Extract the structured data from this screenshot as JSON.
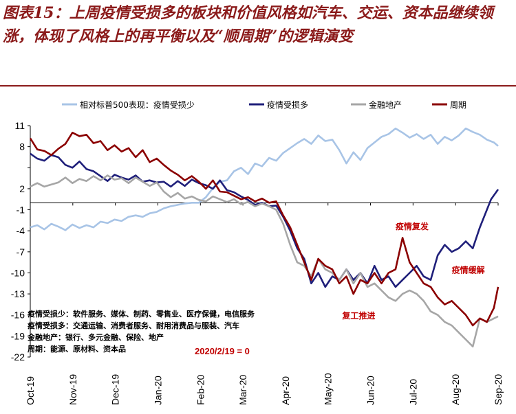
{
  "figure": {
    "title": "图表15：上周疫情受损多的板块和价值风格如汽车、交运、资本品继续领涨，体现了风格上的再平衡以及“顺周期”的逻辑演变"
  },
  "chart_data": {
    "type": "line",
    "ylim": [
      -22,
      11
    ],
    "yticks": [
      11,
      8,
      5,
      2,
      -1,
      -4,
      -7,
      -10,
      -13,
      -16,
      -19,
      -22
    ],
    "ytick_labels": [
      "11",
      "8",
      "",
      "2",
      "-1",
      "-4",
      "-7",
      "-10",
      "-13",
      "-16",
      "-19",
      "-22"
    ],
    "xticks": [
      "Oct-19",
      "Nov-19",
      "Dec-19",
      "Jan-20",
      "Feb-20",
      "Mar-20",
      "Apr-20",
      "May-20",
      "Jun-20",
      "Jul-20",
      "Aug-20",
      "Sep-20"
    ],
    "x_start": "2019-10-08",
    "x_end": "2020-09-25",
    "legend_position": "top",
    "grid": false,
    "series": [
      {
        "name": "相对标普500表现：疫情受损少",
        "color": "#A8C4E6",
        "values": [
          [
            0,
            -3.5
          ],
          [
            5,
            -3.2
          ],
          [
            10,
            -3.8
          ],
          [
            15,
            -3.0
          ],
          [
            20,
            -3.4
          ],
          [
            25,
            -3.9
          ],
          [
            30,
            -3.1
          ],
          [
            35,
            -3.6
          ],
          [
            40,
            -3.2
          ],
          [
            45,
            -3.5
          ],
          [
            50,
            -2.7
          ],
          [
            55,
            -2.9
          ],
          [
            60,
            -2.4
          ],
          [
            65,
            -2.6
          ],
          [
            70,
            -2.0
          ],
          [
            75,
            -1.8
          ],
          [
            80,
            -2.0
          ],
          [
            85,
            -1.5
          ],
          [
            90,
            -1.3
          ],
          [
            95,
            -0.8
          ],
          [
            100,
            -0.5
          ],
          [
            105,
            -0.3
          ],
          [
            110,
            -0.1
          ],
          [
            115,
            0.0
          ],
          [
            120,
            0.0
          ],
          [
            125,
            0.8
          ],
          [
            130,
            2.1
          ],
          [
            135,
            3.0
          ],
          [
            140,
            3.2
          ],
          [
            145,
            4.5
          ],
          [
            150,
            5.0
          ],
          [
            155,
            4.1
          ],
          [
            160,
            5.6
          ],
          [
            165,
            5.2
          ],
          [
            170,
            6.4
          ],
          [
            175,
            6.0
          ],
          [
            180,
            7.1
          ],
          [
            185,
            7.8
          ],
          [
            190,
            8.5
          ],
          [
            195,
            9.1
          ],
          [
            200,
            8.4
          ],
          [
            205,
            9.6
          ],
          [
            210,
            8.8
          ],
          [
            215,
            9.0
          ],
          [
            220,
            7.5
          ],
          [
            225,
            5.6
          ],
          [
            230,
            7.2
          ],
          [
            235,
            6.1
          ],
          [
            240,
            7.8
          ],
          [
            245,
            8.6
          ],
          [
            250,
            9.4
          ],
          [
            255,
            9.8
          ],
          [
            260,
            10.6
          ],
          [
            265,
            10.0
          ],
          [
            270,
            9.3
          ],
          [
            275,
            9.8
          ],
          [
            280,
            9.1
          ],
          [
            285,
            9.7
          ],
          [
            290,
            8.4
          ],
          [
            295,
            9.4
          ],
          [
            300,
            8.9
          ],
          [
            305,
            9.6
          ],
          [
            310,
            10.6
          ],
          [
            315,
            10.1
          ],
          [
            320,
            9.7
          ],
          [
            325,
            9.0
          ],
          [
            330,
            8.6
          ],
          [
            333,
            8.1
          ]
        ]
      },
      {
        "name": "疫情受损多",
        "color": "#1F1F7A",
        "values": [
          [
            0,
            7.0
          ],
          [
            5,
            6.3
          ],
          [
            10,
            6.0
          ],
          [
            15,
            6.8
          ],
          [
            20,
            6.5
          ],
          [
            25,
            5.4
          ],
          [
            30,
            5.0
          ],
          [
            35,
            5.9
          ],
          [
            40,
            4.8
          ],
          [
            45,
            4.5
          ],
          [
            50,
            3.8
          ],
          [
            55,
            3.1
          ],
          [
            60,
            4.0
          ],
          [
            65,
            3.6
          ],
          [
            70,
            3.3
          ],
          [
            75,
            3.9
          ],
          [
            80,
            3.0
          ],
          [
            85,
            3.2
          ],
          [
            90,
            2.9
          ],
          [
            95,
            3.0
          ],
          [
            100,
            2.3
          ],
          [
            105,
            3.1
          ],
          [
            110,
            2.4
          ],
          [
            115,
            3.3
          ],
          [
            120,
            2.8
          ],
          [
            125,
            2.5
          ],
          [
            130,
            2.0
          ],
          [
            135,
            3.2
          ],
          [
            140,
            1.8
          ],
          [
            145,
            1.5
          ],
          [
            150,
            0.9
          ],
          [
            155,
            0.4
          ],
          [
            160,
            -0.3
          ],
          [
            165,
            0.0
          ],
          [
            170,
            -0.5
          ],
          [
            175,
            -0.4
          ],
          [
            180,
            -2.0
          ],
          [
            185,
            -4.0
          ],
          [
            190,
            -6.5
          ],
          [
            195,
            -8.0
          ],
          [
            200,
            -11.5
          ],
          [
            205,
            -10.0
          ],
          [
            210,
            -12.0
          ],
          [
            215,
            -10.5
          ],
          [
            220,
            -11.0
          ],
          [
            225,
            -9.5
          ],
          [
            230,
            -11.0
          ],
          [
            235,
            -10.0
          ],
          [
            240,
            -11.5
          ],
          [
            245,
            -9.0
          ],
          [
            250,
            -11.0
          ],
          [
            255,
            -10.5
          ],
          [
            260,
            -12.0
          ],
          [
            265,
            -11.0
          ],
          [
            270,
            -10.0
          ],
          [
            275,
            -9.0
          ],
          [
            280,
            -10.5
          ],
          [
            285,
            -11.0
          ],
          [
            290,
            -7.5
          ],
          [
            295,
            -6.0
          ],
          [
            300,
            -7.0
          ],
          [
            305,
            -6.5
          ],
          [
            310,
            -5.5
          ],
          [
            315,
            -6.5
          ],
          [
            320,
            -3.5
          ],
          [
            325,
            -1.0
          ],
          [
            328,
            0.5
          ],
          [
            333,
            1.9
          ]
        ]
      },
      {
        "name": "金融地产",
        "color": "#A6A6A6",
        "values": [
          [
            0,
            2.3
          ],
          [
            5,
            2.8
          ],
          [
            10,
            2.3
          ],
          [
            15,
            2.6
          ],
          [
            20,
            2.9
          ],
          [
            25,
            3.6
          ],
          [
            30,
            2.8
          ],
          [
            35,
            3.4
          ],
          [
            40,
            3.1
          ],
          [
            45,
            3.8
          ],
          [
            50,
            3.2
          ],
          [
            55,
            3.9
          ],
          [
            60,
            3.3
          ],
          [
            65,
            3.5
          ],
          [
            70,
            2.8
          ],
          [
            75,
            3.6
          ],
          [
            80,
            3.0
          ],
          [
            85,
            2.4
          ],
          [
            90,
            2.9
          ],
          [
            95,
            1.6
          ],
          [
            100,
            0.8
          ],
          [
            105,
            1.4
          ],
          [
            110,
            0.6
          ],
          [
            115,
            0.9
          ],
          [
            120,
            0.4
          ],
          [
            125,
            0.2
          ],
          [
            130,
            0.9
          ],
          [
            135,
            0.5
          ],
          [
            140,
            0.1
          ],
          [
            145,
            0.5
          ],
          [
            150,
            -0.2
          ],
          [
            155,
            0.1
          ],
          [
            160,
            -0.5
          ],
          [
            165,
            -0.1
          ],
          [
            170,
            -0.5
          ],
          [
            175,
            -1.0
          ],
          [
            180,
            -3.0
          ],
          [
            185,
            -6.0
          ],
          [
            190,
            -8.5
          ],
          [
            195,
            -9.0
          ],
          [
            200,
            -10.5
          ],
          [
            205,
            -8.0
          ],
          [
            210,
            -9.5
          ],
          [
            215,
            -10.0
          ],
          [
            220,
            -11.0
          ],
          [
            225,
            -9.5
          ],
          [
            230,
            -11.5
          ],
          [
            235,
            -10.0
          ],
          [
            240,
            -12.0
          ],
          [
            245,
            -11.5
          ],
          [
            250,
            -12.5
          ],
          [
            255,
            -13.5
          ],
          [
            260,
            -14.0
          ],
          [
            265,
            -13.0
          ],
          [
            270,
            -12.5
          ],
          [
            275,
            -13.0
          ],
          [
            280,
            -14.0
          ],
          [
            285,
            -15.5
          ],
          [
            290,
            -16.0
          ],
          [
            295,
            -17.0
          ],
          [
            300,
            -17.5
          ],
          [
            305,
            -18.5
          ],
          [
            310,
            -19.5
          ],
          [
            315,
            -20.5
          ],
          [
            320,
            -16.5
          ],
          [
            325,
            -17.0
          ],
          [
            330,
            -16.5
          ],
          [
            333,
            -16.2
          ]
        ]
      },
      {
        "name": "周期",
        "color": "#8B0000",
        "values": [
          [
            0,
            9.2
          ],
          [
            5,
            7.6
          ],
          [
            10,
            7.4
          ],
          [
            15,
            6.8
          ],
          [
            20,
            7.7
          ],
          [
            25,
            8.4
          ],
          [
            30,
            10.0
          ],
          [
            35,
            9.5
          ],
          [
            40,
            9.7
          ],
          [
            45,
            8.5
          ],
          [
            50,
            8.8
          ],
          [
            55,
            7.5
          ],
          [
            60,
            8.2
          ],
          [
            65,
            7.3
          ],
          [
            70,
            7.8
          ],
          [
            75,
            6.5
          ],
          [
            80,
            7.5
          ],
          [
            85,
            5.8
          ],
          [
            90,
            6.3
          ],
          [
            95,
            5.4
          ],
          [
            100,
            4.6
          ],
          [
            105,
            4.0
          ],
          [
            110,
            3.2
          ],
          [
            115,
            3.8
          ],
          [
            120,
            3.0
          ],
          [
            125,
            2.0
          ],
          [
            130,
            3.2
          ],
          [
            135,
            1.6
          ],
          [
            140,
            1.5
          ],
          [
            145,
            1.0
          ],
          [
            150,
            0.5
          ],
          [
            155,
            0.8
          ],
          [
            160,
            0.2
          ],
          [
            165,
            0.6
          ],
          [
            170,
            0.0
          ],
          [
            175,
            0.2
          ],
          [
            180,
            -1.8
          ],
          [
            185,
            -3.5
          ],
          [
            190,
            -6.0
          ],
          [
            195,
            -8.5
          ],
          [
            200,
            -11.0
          ],
          [
            205,
            -8.0
          ],
          [
            210,
            -9.0
          ],
          [
            215,
            -9.5
          ],
          [
            220,
            -11.5
          ],
          [
            225,
            -10.5
          ],
          [
            230,
            -13.0
          ],
          [
            235,
            -11.0
          ],
          [
            240,
            -11.5
          ],
          [
            245,
            -10.0
          ],
          [
            250,
            -11.5
          ],
          [
            255,
            -10.0
          ],
          [
            260,
            -9.5
          ],
          [
            265,
            -5.0
          ],
          [
            270,
            -8.5
          ],
          [
            275,
            -10.0
          ],
          [
            280,
            -11.5
          ],
          [
            285,
            -12.0
          ],
          [
            290,
            -13.5
          ],
          [
            295,
            -14.5
          ],
          [
            300,
            -14.0
          ],
          [
            305,
            -15.0
          ],
          [
            310,
            -16.0
          ],
          [
            315,
            -17.5
          ],
          [
            320,
            -16.5
          ],
          [
            325,
            -17.0
          ],
          [
            330,
            -15.0
          ],
          [
            333,
            -12.0
          ]
        ]
      }
    ],
    "annotations": [
      {
        "text": "疫情复发",
        "x": 260,
        "y": -3.8
      },
      {
        "text": "疫情缓解",
        "x": 300,
        "y": -10.0
      },
      {
        "text": "复工推进",
        "x": 222,
        "y": -16.5
      }
    ],
    "notes": [
      "疫情受损少：软件服务、媒体、制药、零售业、医疗保健，电信服务",
      "疫情受损多：交通运输、消费者服务、耐用消费品与服装、汽车",
      "金融地产：银行、多元金融、保险、地产",
      "周期：能源、原材料、资本品"
    ],
    "baseline_label": "2020/2/19 = 0"
  }
}
